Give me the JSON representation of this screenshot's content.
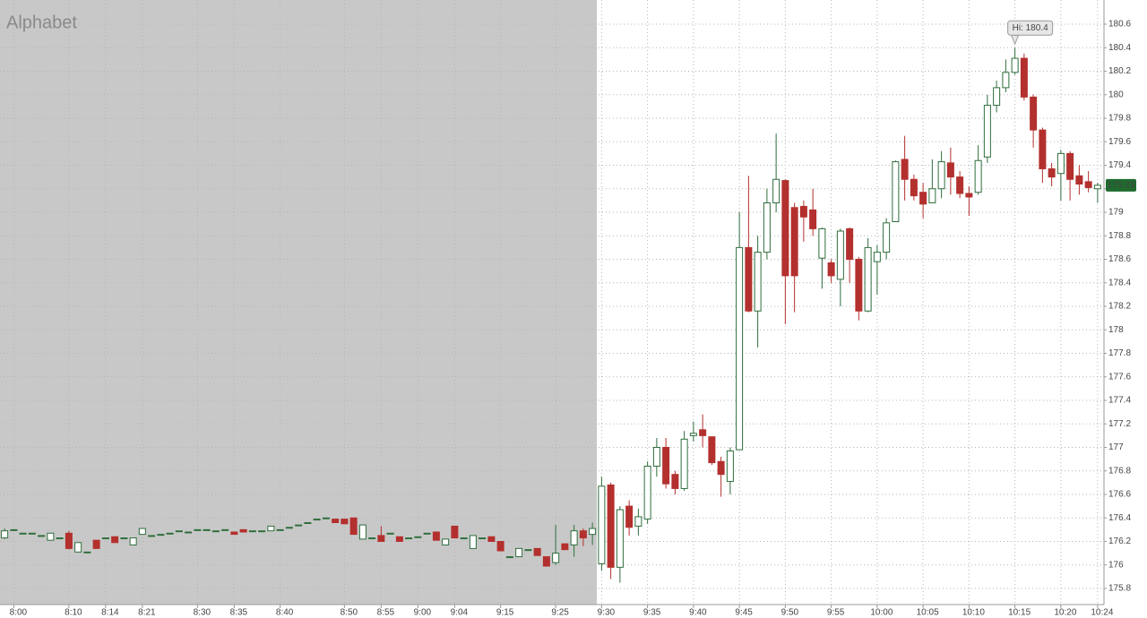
{
  "chart_data": {
    "type": "candlestick",
    "title": "Alphabet",
    "categories": [
      null,
      "8:00",
      null,
      null,
      null,
      null,
      null,
      "8:10",
      null,
      null,
      null,
      "8:14",
      null,
      null,
      null,
      "8:21",
      null,
      null,
      null,
      null,
      null,
      "8:30",
      null,
      null,
      null,
      "8:35",
      null,
      null,
      null,
      null,
      "8:40",
      null,
      null,
      null,
      null,
      null,
      null,
      "8:50",
      null,
      null,
      null,
      "8:55",
      null,
      null,
      null,
      "9:00",
      null,
      null,
      null,
      "9:04",
      null,
      null,
      null,
      null,
      "9:15",
      null,
      null,
      null,
      null,
      null,
      "9:25",
      null,
      null,
      null,
      null,
      "9:30",
      null,
      null,
      null,
      null,
      "9:35",
      null,
      null,
      null,
      null,
      "9:40",
      null,
      null,
      null,
      null,
      "9:45",
      null,
      null,
      null,
      null,
      "9:50",
      null,
      null,
      null,
      null,
      "9:55",
      null,
      null,
      null,
      null,
      "10:00",
      null,
      null,
      null,
      null,
      "10:05",
      null,
      null,
      null,
      null,
      "10:10",
      null,
      null,
      null,
      null,
      "10:15",
      null,
      null,
      null,
      null,
      "10:20",
      null,
      null,
      null,
      "10:24"
    ],
    "open": [
      176.23,
      176.3,
      176.27,
      176.27,
      176.25,
      176.21,
      176.23,
      176.27,
      176.11,
      176.11,
      176.21,
      176.23,
      176.24,
      176.23,
      176.17,
      176.26,
      176.25,
      176.26,
      176.27,
      176.29,
      176.28,
      176.3,
      176.3,
      176.29,
      176.3,
      176.28,
      176.3,
      176.29,
      176.29,
      176.29,
      176.3,
      176.32,
      176.34,
      176.36,
      176.39,
      176.4,
      176.39,
      176.39,
      176.4,
      176.22,
      176.23,
      176.25,
      176.27,
      176.24,
      176.23,
      176.24,
      176.27,
      176.28,
      176.17,
      176.33,
      176.23,
      176.14,
      176.23,
      176.24,
      176.2,
      176.07,
      176.07,
      176.13,
      176.14,
      176.07,
      176.02,
      176.18,
      176.17,
      176.29,
      176.26,
      176.01,
      176.68,
      175.98,
      176.5,
      176.33,
      176.39,
      176.84,
      177.0,
      176.77,
      176.65,
      177.1,
      177.15,
      177.09,
      176.88,
      176.71,
      176.98,
      178.7,
      178.16,
      178.66,
      179.08,
      179.27,
      179.04,
      179.05,
      179.02,
      178.61,
      178.57,
      178.43,
      178.86,
      178.6,
      178.16,
      178.58,
      178.66,
      178.92,
      179.45,
      179.28,
      179.17,
      179.08,
      179.2,
      179.42,
      179.3,
      179.16,
      179.17,
      179.47,
      179.91,
      180.06,
      180.19,
      180.31,
      179.98,
      179.7,
      179.37,
      179.33,
      179.5,
      179.31,
      179.26,
      179.2
    ],
    "high": [
      176.31,
      176.3,
      176.27,
      176.27,
      176.25,
      176.27,
      176.23,
      176.29,
      176.19,
      176.11,
      176.21,
      176.23,
      176.24,
      176.23,
      176.23,
      176.31,
      176.25,
      176.26,
      176.27,
      176.29,
      176.28,
      176.3,
      176.3,
      176.29,
      176.3,
      176.28,
      176.3,
      176.29,
      176.29,
      176.33,
      176.3,
      176.32,
      176.34,
      176.36,
      176.39,
      176.4,
      176.39,
      176.39,
      176.4,
      176.34,
      176.23,
      176.33,
      176.27,
      176.24,
      176.23,
      176.24,
      176.27,
      176.28,
      176.22,
      176.33,
      176.23,
      176.25,
      176.23,
      176.24,
      176.2,
      176.07,
      176.14,
      176.13,
      176.14,
      176.07,
      176.34,
      176.18,
      176.34,
      176.31,
      176.36,
      176.75,
      176.7,
      176.5,
      176.55,
      176.48,
      176.88,
      177.08,
      177.08,
      176.8,
      177.14,
      177.22,
      177.28,
      177.09,
      176.92,
      177.0,
      179.0,
      179.31,
      178.8,
      179.2,
      179.67,
      179.28,
      179.08,
      179.1,
      179.2,
      178.87,
      178.6,
      178.86,
      178.87,
      178.62,
      178.78,
      178.72,
      178.95,
      179.44,
      179.65,
      179.32,
      179.25,
      179.45,
      179.52,
      179.55,
      179.35,
      179.22,
      179.57,
      180.0,
      180.12,
      180.3,
      180.4,
      180.35,
      180.0,
      179.72,
      179.42,
      179.53,
      179.52,
      179.4,
      179.35,
      179.25
    ],
    "low": [
      176.22,
      176.3,
      176.27,
      176.27,
      176.25,
      176.21,
      176.23,
      176.13,
      176.11,
      176.11,
      176.14,
      176.23,
      176.19,
      176.23,
      176.17,
      176.26,
      176.25,
      176.26,
      176.27,
      176.29,
      176.28,
      176.3,
      176.3,
      176.29,
      176.3,
      176.26,
      176.28,
      176.29,
      176.29,
      176.29,
      176.3,
      176.32,
      176.34,
      176.36,
      176.39,
      176.4,
      176.36,
      176.35,
      176.26,
      176.22,
      176.23,
      176.2,
      176.27,
      176.2,
      176.23,
      176.24,
      176.27,
      176.21,
      176.17,
      176.23,
      176.23,
      176.14,
      176.23,
      176.2,
      176.12,
      176.07,
      176.07,
      176.13,
      176.08,
      175.99,
      176.0,
      176.13,
      176.07,
      176.16,
      176.17,
      175.95,
      175.88,
      175.85,
      176.25,
      176.25,
      176.35,
      176.75,
      176.65,
      176.6,
      176.63,
      177.05,
      177.0,
      176.85,
      176.58,
      176.6,
      176.98,
      178.15,
      177.85,
      178.6,
      179.0,
      178.05,
      178.15,
      178.75,
      178.8,
      178.35,
      178.4,
      178.2,
      178.4,
      178.08,
      178.15,
      178.3,
      178.6,
      178.92,
      179.1,
      179.1,
      178.95,
      179.08,
      179.12,
      179.15,
      179.12,
      178.97,
      179.15,
      179.42,
      179.85,
      180.02,
      180.17,
      179.95,
      179.55,
      179.25,
      179.22,
      179.1,
      179.1,
      179.15,
      179.17,
      179.08
    ],
    "close": [
      176.29,
      176.3,
      176.27,
      176.27,
      176.25,
      176.27,
      176.23,
      176.14,
      176.19,
      176.11,
      176.14,
      176.23,
      176.19,
      176.23,
      176.23,
      176.31,
      176.25,
      176.26,
      176.27,
      176.29,
      176.28,
      176.3,
      176.3,
      176.29,
      176.3,
      176.26,
      176.28,
      176.29,
      176.29,
      176.33,
      176.3,
      176.32,
      176.34,
      176.36,
      176.39,
      176.4,
      176.36,
      176.35,
      176.26,
      176.34,
      176.23,
      176.2,
      176.27,
      176.2,
      176.23,
      176.24,
      176.27,
      176.21,
      176.22,
      176.23,
      176.23,
      176.25,
      176.23,
      176.2,
      176.12,
      176.07,
      176.14,
      176.13,
      176.08,
      175.99,
      176.1,
      176.13,
      176.29,
      176.23,
      176.31,
      176.67,
      175.98,
      176.47,
      176.32,
      176.41,
      176.84,
      177.0,
      176.69,
      176.65,
      177.07,
      177.12,
      177.1,
      176.87,
      176.77,
      176.97,
      178.7,
      178.16,
      178.66,
      179.08,
      179.28,
      178.46,
      178.46,
      178.96,
      178.86,
      178.86,
      178.46,
      178.84,
      178.6,
      178.16,
      178.7,
      178.66,
      178.91,
      179.43,
      179.28,
      179.14,
      179.07,
      179.2,
      179.43,
      179.3,
      179.16,
      179.13,
      179.44,
      179.91,
      180.06,
      180.19,
      180.31,
      179.98,
      179.7,
      179.37,
      179.3,
      179.5,
      179.28,
      179.24,
      179.21,
      179.23
    ],
    "up_color": "#2f6e3c",
    "down_color": "#b3302e",
    "last_price_color": "#1f6b2e",
    "high_label": "Hi: 180.4",
    "ylim": [
      175.8,
      180.6
    ],
    "yticks": [
      175.8,
      176,
      176.2,
      176.4,
      176.6,
      176.8,
      177,
      177.2,
      177.4,
      177.6,
      177.8,
      178,
      178.2,
      178.4,
      178.6,
      178.8,
      179,
      179.2,
      179.4,
      179.6,
      179.8,
      180,
      180.2,
      180.4,
      180.6
    ],
    "grid": true
  }
}
